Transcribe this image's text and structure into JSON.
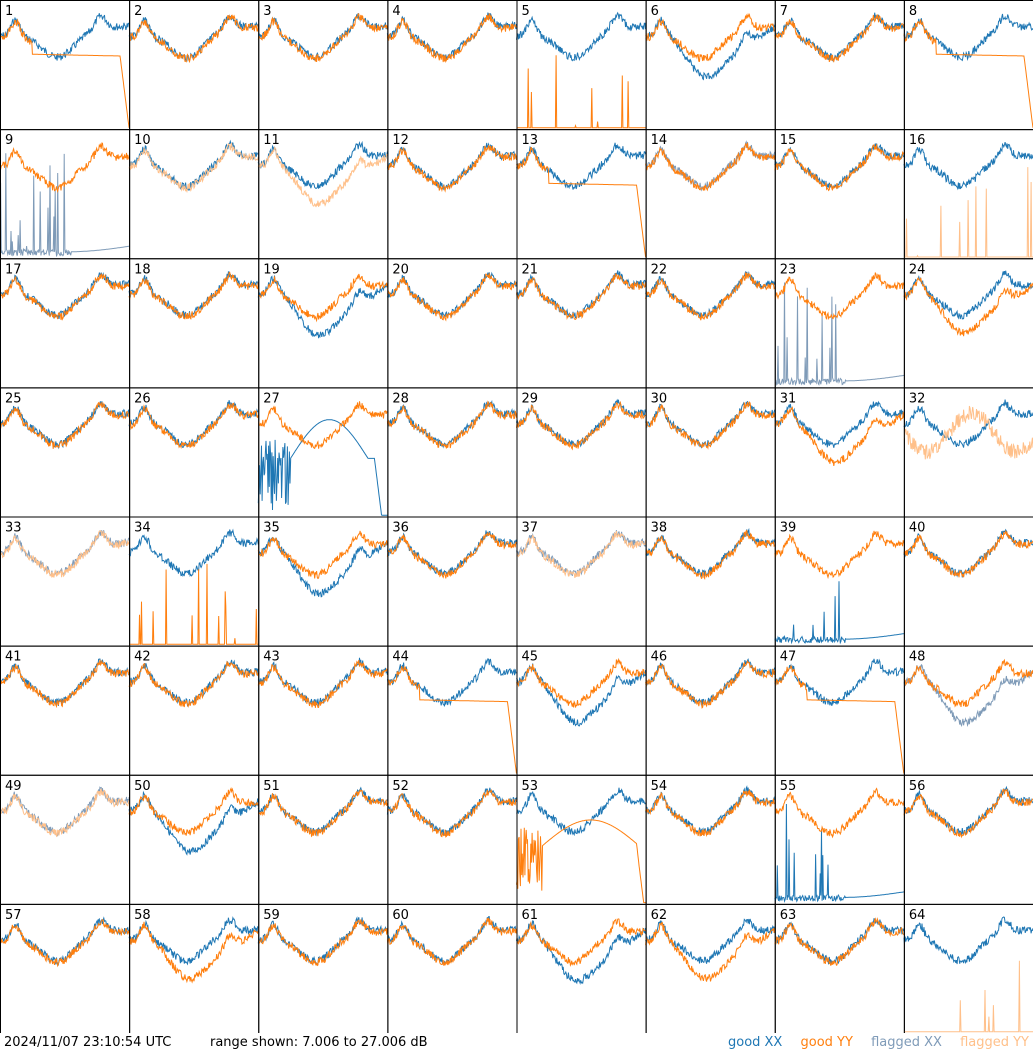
{
  "header": {
    "timestamp": "2024/11/07 23:10:54 UTC",
    "range_label": "range shown: 7.006 to 27.006 dB"
  },
  "legend": {
    "good_xx": "good XX",
    "good_yy": "good YY",
    "flagged_xx": "flagged XX",
    "flagged_yy": "flagged YY"
  },
  "colors": {
    "good_xx": "#1f77b4",
    "good_yy": "#ff7f0e",
    "flagged_xx": "#7f9bb8",
    "flagged_yy": "#ffc08a",
    "frame": "#000000"
  },
  "chart_data": {
    "type": "line",
    "grid": false,
    "ylim": [
      7.006,
      27.006
    ],
    "y_unit": "dB",
    "layout": "8x8 small multiples",
    "panels": [
      {
        "id": "1",
        "xx": "good",
        "yy": "good",
        "shape": "edge-rolloff"
      },
      {
        "id": "2",
        "xx": "good",
        "yy": "good",
        "shape": "normal"
      },
      {
        "id": "3",
        "xx": "good",
        "yy": "good",
        "shape": "normal"
      },
      {
        "id": "4",
        "xx": "good",
        "yy": "good",
        "shape": "normal"
      },
      {
        "id": "5",
        "xx": "good",
        "yy": "good",
        "shape": "yy-spikes"
      },
      {
        "id": "6",
        "xx": "good",
        "yy": "good",
        "shape": "xx-low"
      },
      {
        "id": "7",
        "xx": "good",
        "yy": "good",
        "shape": "normal"
      },
      {
        "id": "8",
        "xx": "good",
        "yy": "good",
        "shape": "edge-rolloff"
      },
      {
        "id": "9",
        "xx": "flagged",
        "yy": "good",
        "shape": "xx-spikes"
      },
      {
        "id": "10",
        "xx": "good",
        "yy": "flagged",
        "shape": "normal"
      },
      {
        "id": "11",
        "xx": "good",
        "yy": "flagged",
        "shape": "yy-low"
      },
      {
        "id": "12",
        "xx": "good",
        "yy": "good",
        "shape": "normal"
      },
      {
        "id": "13",
        "xx": "good",
        "yy": "good",
        "shape": "edge-rolloff"
      },
      {
        "id": "14",
        "xx": "flagged",
        "yy": "good",
        "shape": "normal"
      },
      {
        "id": "15",
        "xx": "good",
        "yy": "good",
        "shape": "normal"
      },
      {
        "id": "16",
        "xx": "good",
        "yy": "flagged",
        "shape": "yy-spikes"
      },
      {
        "id": "17",
        "xx": "good",
        "yy": "good",
        "shape": "normal"
      },
      {
        "id": "18",
        "xx": "good",
        "yy": "good",
        "shape": "normal"
      },
      {
        "id": "19",
        "xx": "good",
        "yy": "good",
        "shape": "xx-low"
      },
      {
        "id": "20",
        "xx": "good",
        "yy": "good",
        "shape": "normal"
      },
      {
        "id": "21",
        "xx": "good",
        "yy": "good",
        "shape": "normal"
      },
      {
        "id": "22",
        "xx": "good",
        "yy": "good",
        "shape": "normal"
      },
      {
        "id": "23",
        "xx": "flagged",
        "yy": "good",
        "shape": "xx-spikes"
      },
      {
        "id": "24",
        "xx": "good",
        "yy": "good",
        "shape": "yy-low"
      },
      {
        "id": "25",
        "xx": "good",
        "yy": "good",
        "shape": "normal"
      },
      {
        "id": "26",
        "xx": "good",
        "yy": "good",
        "shape": "normal"
      },
      {
        "id": "27",
        "xx": "good",
        "yy": "good",
        "shape": "xx-noisy"
      },
      {
        "id": "28",
        "xx": "good",
        "yy": "good",
        "shape": "normal"
      },
      {
        "id": "29",
        "xx": "good",
        "yy": "good",
        "shape": "normal"
      },
      {
        "id": "30",
        "xx": "good",
        "yy": "good",
        "shape": "normal"
      },
      {
        "id": "31",
        "xx": "good",
        "yy": "good",
        "shape": "yy-low"
      },
      {
        "id": "32",
        "xx": "good",
        "yy": "flagged",
        "shape": "yy-flag-high"
      },
      {
        "id": "33",
        "xx": "flagged",
        "yy": "flagged",
        "shape": "normal"
      },
      {
        "id": "34",
        "xx": "good",
        "yy": "good",
        "shape": "yy-spikes"
      },
      {
        "id": "35",
        "xx": "good",
        "yy": "good",
        "shape": "xx-low"
      },
      {
        "id": "36",
        "xx": "good",
        "yy": "good",
        "shape": "normal"
      },
      {
        "id": "37",
        "xx": "flagged",
        "yy": "flagged",
        "shape": "normal"
      },
      {
        "id": "38",
        "xx": "good",
        "yy": "good",
        "shape": "normal"
      },
      {
        "id": "39",
        "xx": "good",
        "yy": "good",
        "shape": "xx-spikes"
      },
      {
        "id": "40",
        "xx": "good",
        "yy": "good",
        "shape": "normal"
      },
      {
        "id": "41",
        "xx": "good",
        "yy": "good",
        "shape": "normal"
      },
      {
        "id": "42",
        "xx": "good",
        "yy": "good",
        "shape": "normal"
      },
      {
        "id": "43",
        "xx": "good",
        "yy": "good",
        "shape": "normal"
      },
      {
        "id": "44",
        "xx": "good",
        "yy": "good",
        "shape": "edge-rolloff"
      },
      {
        "id": "45",
        "xx": "good",
        "yy": "good",
        "shape": "xx-low"
      },
      {
        "id": "46",
        "xx": "good",
        "yy": "good",
        "shape": "normal"
      },
      {
        "id": "47",
        "xx": "good",
        "yy": "good",
        "shape": "edge-rolloff"
      },
      {
        "id": "48",
        "xx": "flagged",
        "yy": "good",
        "shape": "xx-low"
      },
      {
        "id": "49",
        "xx": "flagged",
        "yy": "flagged",
        "shape": "normal"
      },
      {
        "id": "50",
        "xx": "good",
        "yy": "good",
        "shape": "xx-low"
      },
      {
        "id": "51",
        "xx": "good",
        "yy": "good",
        "shape": "normal"
      },
      {
        "id": "52",
        "xx": "good",
        "yy": "good",
        "shape": "normal"
      },
      {
        "id": "53",
        "xx": "good",
        "yy": "good",
        "shape": "yy-noisy"
      },
      {
        "id": "54",
        "xx": "good",
        "yy": "good",
        "shape": "normal"
      },
      {
        "id": "55",
        "xx": "good",
        "yy": "good",
        "shape": "xx-spikes"
      },
      {
        "id": "56",
        "xx": "good",
        "yy": "good",
        "shape": "normal"
      },
      {
        "id": "57",
        "xx": "good",
        "yy": "good",
        "shape": "normal"
      },
      {
        "id": "58",
        "xx": "good",
        "yy": "good",
        "shape": "yy-low"
      },
      {
        "id": "59",
        "xx": "good",
        "yy": "good",
        "shape": "normal"
      },
      {
        "id": "60",
        "xx": "good",
        "yy": "good",
        "shape": "normal"
      },
      {
        "id": "61",
        "xx": "good",
        "yy": "good",
        "shape": "xx-low"
      },
      {
        "id": "62",
        "xx": "good",
        "yy": "good",
        "shape": "yy-low"
      },
      {
        "id": "63",
        "xx": "good",
        "yy": "good",
        "shape": "normal"
      },
      {
        "id": "64",
        "xx": "good",
        "yy": "flagged",
        "shape": "yy-spikes"
      }
    ]
  }
}
